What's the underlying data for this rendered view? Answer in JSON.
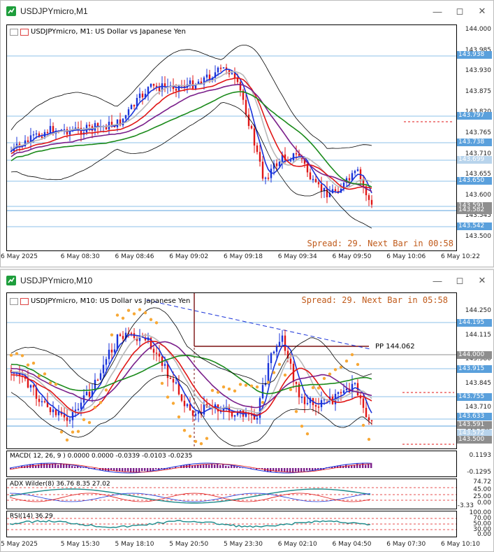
{
  "colors": {
    "bull": "#1a33d9",
    "bear": "#e01616",
    "price_line": "#5aa0dc",
    "ma_red": "#e01616",
    "ma_green": "#1a8a1a",
    "ma_purple": "#7a1f8a",
    "ma_blue": "#1a33d9",
    "spread": "#c05a1a",
    "psar": "#f7a836"
  },
  "window1": {
    "title": "USDJPYmicro,M1",
    "header": "USDJPYmicro, M1:  US Dollar vs Japanese Yen",
    "spread_text": "Spread: 29. Next Bar in 00:58",
    "price_labels": [
      "144.000",
      "143.985",
      "143.930",
      "143.875",
      "143.820",
      "143.765",
      "143.710",
      "143.655",
      "143.600",
      "143.545",
      "143.500"
    ],
    "tags": [
      {
        "text": "143.938",
        "style": "blue"
      },
      {
        "text": "143.797",
        "style": "blue"
      },
      {
        "text": "143.738",
        "style": "blue"
      },
      {
        "text": "143.699",
        "style": "light"
      },
      {
        "text": "143.650",
        "style": "blue"
      },
      {
        "text": "143.591",
        "style": "grey"
      },
      {
        "text": "143.582",
        "style": "grey"
      },
      {
        "text": "143.542",
        "style": "blue"
      }
    ],
    "time_labels": [
      "6 May 2025",
      "6 May 08:30",
      "6 May 08:46",
      "6 May 09:02",
      "6 May 09:18",
      "6 May 09:34",
      "6 May 09:50",
      "6 May 10:06",
      "6 May 10:22"
    ],
    "icons": [
      "minimize-icon",
      "maximize-icon",
      "close-icon"
    ]
  },
  "window2": {
    "title": "USDJPYmicro,M10",
    "header": "USDJPYmicro, M10:  US Dollar vs Japanese Yen",
    "spread_text": "Spread: 29. Next Bar in 05:58",
    "pivot_label": "PP 144.062",
    "price_labels": [
      "144.250",
      "144.115",
      "143.980",
      "143.845",
      "143.710",
      "143.575"
    ],
    "tags": [
      {
        "text": "144.195",
        "style": "blue"
      },
      {
        "text": "144.000",
        "style": "grey"
      },
      {
        "text": "143.915",
        "style": "blue"
      },
      {
        "text": "143.755",
        "style": "blue"
      },
      {
        "text": "143.633",
        "style": "blue"
      },
      {
        "text": "143.591",
        "style": "grey"
      },
      {
        "text": "143.572",
        "style": "light"
      },
      {
        "text": "143.500",
        "style": "grey"
      }
    ],
    "macd": {
      "label": "MACD( 12, 26, 9 ) 0.0000 0.0000 -0.0339 -0.0103 -0.0235",
      "top": "0.1193",
      "bottom": "-0.1295"
    },
    "adx": {
      "label": "ADX Wilder(8) 36.76 8.35 27.02",
      "levels": [
        "74.72",
        "45.00",
        "25.00",
        "0.00"
      ],
      "extra": "-3.33"
    },
    "rsi": {
      "label": "RSI(14) 36.29",
      "levels": [
        "100.00",
        "70.00",
        "50.00",
        "30.00",
        "0.00"
      ]
    },
    "time_labels": [
      "5 May 2025",
      "5 May 15:30",
      "5 May 18:10",
      "5 May 20:50",
      "5 May 23:30",
      "6 May 02:10",
      "6 May 04:50",
      "6 May 07:30",
      "6 May 10:10"
    ],
    "icons": [
      "minimize-icon",
      "maximize-icon",
      "close-icon"
    ]
  }
}
